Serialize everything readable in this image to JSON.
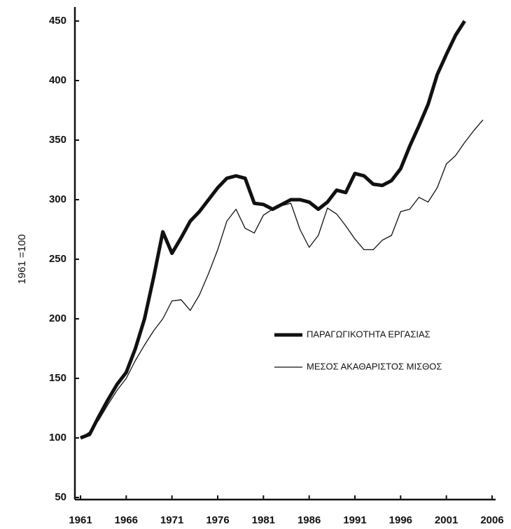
{
  "chart_data": {
    "type": "line",
    "ylabel": "1961 =100",
    "x": [
      1961,
      1962,
      1963,
      1964,
      1965,
      1966,
      1967,
      1968,
      1969,
      1970,
      1971,
      1972,
      1973,
      1974,
      1975,
      1976,
      1977,
      1978,
      1979,
      1980,
      1981,
      1982,
      1983,
      1984,
      1985,
      1986,
      1987,
      1988,
      1989,
      1990,
      1991,
      1992,
      1993,
      1994,
      1995,
      1996,
      1997,
      1998,
      1999,
      2000,
      2001,
      2002,
      2003,
      2004,
      2005
    ],
    "series": [
      {
        "name": "ΠΑΡΑΓΩΓΙΚΟΤΗΤΑ ΕΡΓΑΣΙΑΣ",
        "color": "#111111",
        "values": [
          100,
          103,
          118,
          132,
          145,
          155,
          175,
          200,
          235,
          273,
          255,
          268,
          282,
          290,
          300,
          310,
          318,
          320,
          318,
          297,
          296,
          292,
          296,
          300,
          300,
          298,
          292,
          298,
          308,
          306,
          322,
          320,
          313,
          312,
          316,
          326,
          345,
          362,
          380,
          405,
          422,
          438,
          450,
          null,
          null
        ]
      },
      {
        "name": "ΜΕΣΟΣ ΑΚΑΘΑΡΙΣΤΟΣ ΜΙΣΘΟΣ",
        "color": "#111111",
        "values": [
          100,
          105,
          115,
          128,
          140,
          150,
          165,
          178,
          190,
          200,
          215,
          216,
          207,
          220,
          238,
          258,
          282,
          292,
          276,
          272,
          287,
          292,
          295,
          297,
          275,
          260,
          270,
          293,
          288,
          278,
          267,
          258,
          258,
          266,
          270,
          290,
          292,
          302,
          298,
          310,
          330,
          337,
          348,
          358,
          367
        ]
      }
    ],
    "xlim": [
      1961,
      2006
    ],
    "xticks": [
      1961,
      1966,
      1971,
      1976,
      1981,
      1986,
      1991,
      1996,
      2001,
      2006
    ],
    "ylim": [
      50,
      450
    ],
    "yticks": [
      50,
      100,
      150,
      200,
      250,
      300,
      350,
      400,
      450
    ],
    "grid": false,
    "legend": "right"
  }
}
